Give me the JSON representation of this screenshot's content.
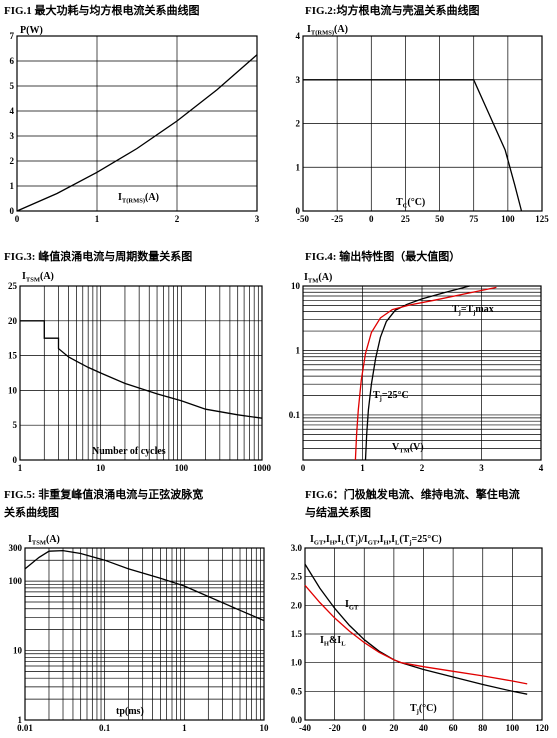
{
  "chart_data": [
    {
      "id": "fig1",
      "type": "line",
      "caption": "FIG.1  最大功耗与均方根电流关系曲线图",
      "ylabel": "P(W)",
      "xlabel": "IT(RMS)(A)",
      "xlabel_parts": [
        "I",
        "T(RMS)",
        "(A)"
      ],
      "xlim": [
        0,
        3
      ],
      "ylim": [
        0,
        7
      ],
      "xticks": [
        0,
        1,
        2,
        3
      ],
      "yticks": [
        0,
        1,
        2,
        3,
        4,
        5,
        6,
        7
      ],
      "grid": true,
      "series": [
        {
          "color": "#000000",
          "x": [
            0,
            0.5,
            1.0,
            1.5,
            2.0,
            2.5,
            3.0
          ],
          "y": [
            0,
            0.7,
            1.55,
            2.5,
            3.6,
            4.85,
            6.25
          ]
        }
      ]
    },
    {
      "id": "fig2",
      "type": "line",
      "caption": "FIG.2:均方根电流与壳温关系曲线图",
      "ylabel": "IT(RMS)(A)",
      "ylabel_parts": [
        "I",
        "T(RMS)",
        "(A)"
      ],
      "xlabel": "TC(°C)",
      "xlabel_parts": [
        "T",
        "C",
        "(°C)"
      ],
      "xlim": [
        -50,
        125
      ],
      "ylim": [
        0,
        4
      ],
      "xticks": [
        -50,
        -25,
        0,
        25,
        50,
        75,
        100,
        125
      ],
      "yticks": [
        0,
        1,
        2,
        3,
        4
      ],
      "grid": true,
      "series": [
        {
          "color": "#000000",
          "x": [
            -50,
            75,
            85,
            98,
            105,
            110
          ],
          "y": [
            3,
            3,
            2.3,
            1.4,
            0.6,
            0
          ]
        }
      ]
    },
    {
      "id": "fig3",
      "type": "line",
      "caption": "FIG.3:  峰值浪涌电流与周期数量关系图",
      "ylabel": "ITSM(A)",
      "ylabel_parts": [
        "I",
        "TSM",
        "(A)"
      ],
      "xlabel": "Number of cycles",
      "xscale": "log",
      "xlim": [
        1,
        1000
      ],
      "ylim": [
        0,
        25
      ],
      "xticks": [
        1,
        10,
        100,
        1000
      ],
      "yticks": [
        0,
        5,
        10,
        15,
        20,
        25
      ],
      "grid": true,
      "series": [
        {
          "color": "#000000",
          "x": [
            1,
            2,
            2,
            3,
            3,
            4,
            5,
            7,
            10,
            20,
            50,
            100,
            200,
            500,
            1000
          ],
          "y": [
            20,
            20,
            17.5,
            17.5,
            16,
            14.8,
            14.2,
            13.3,
            12.5,
            11,
            9.5,
            8.5,
            7.3,
            6.5,
            6
          ]
        }
      ]
    },
    {
      "id": "fig4",
      "type": "line",
      "caption": "FIG.4:  输出特性图（最大值图）",
      "ylabel": "ITM(A)",
      "ylabel_parts": [
        "I",
        "TM",
        "(A)"
      ],
      "xlabel": "VTM(V)",
      "xlabel_parts": [
        "V",
        "TM",
        "(V)"
      ],
      "yscale": "log",
      "xlim": [
        0,
        4
      ],
      "ylim": [
        0.02,
        10
      ],
      "xticks": [
        0,
        1,
        2,
        3,
        4
      ],
      "yticks": [
        0.1,
        1,
        10
      ],
      "grid": true,
      "annotations": [
        {
          "text": "Tj=Tjmax",
          "parts": [
            "T",
            "j",
            "=T",
            "j",
            "max"
          ]
        },
        {
          "text": "Tj=25°C",
          "parts": [
            "T",
            "j",
            "=25°C"
          ]
        }
      ],
      "series": [
        {
          "name": "Tj=25°C",
          "color": "#000000",
          "x": [
            1.05,
            1.07,
            1.1,
            1.15,
            1.22,
            1.3,
            1.4,
            1.55,
            1.75,
            2.0,
            2.4,
            2.8
          ],
          "y": [
            0.02,
            0.05,
            0.12,
            0.3,
            0.75,
            1.6,
            2.8,
            4.2,
            5.2,
            6.3,
            8.0,
            10
          ]
        },
        {
          "name": "Tj=Tjmax",
          "color": "#e00000",
          "x": [
            0.88,
            0.9,
            0.93,
            0.98,
            1.05,
            1.15,
            1.3,
            1.5,
            1.8,
            2.2,
            2.7,
            3.25
          ],
          "y": [
            0.02,
            0.05,
            0.12,
            0.35,
            0.9,
            1.9,
            3.2,
            4.3,
            5.1,
            6.0,
            7.5,
            9.5
          ]
        }
      ]
    },
    {
      "id": "fig5",
      "type": "line",
      "caption_lines": [
        "FIG.5:  非重复峰值浪涌电流与正弦波脉宽",
        "关系曲线图"
      ],
      "caption": "FIG.5:  非重复峰值浪涌电流与正弦波脉宽关系曲线图",
      "ylabel": "ITSM(A)",
      "ylabel_parts": [
        "I",
        "TSM",
        "(A)"
      ],
      "xlabel": "tp(ms)",
      "xscale": "log",
      "yscale": "log",
      "xlim": [
        0.01,
        10
      ],
      "ylim": [
        1,
        300
      ],
      "xticks": [
        0.01,
        0.1,
        1,
        10
      ],
      "xtick_labels": [
        "0.01",
        "0.1",
        "1",
        "10"
      ],
      "yticks": [
        1,
        10,
        100,
        300
      ],
      "grid": true,
      "series": [
        {
          "color": "#000000",
          "x": [
            0.01,
            0.015,
            0.02,
            0.03,
            0.05,
            0.1,
            0.2,
            0.5,
            1,
            2,
            5,
            10
          ],
          "y": [
            150,
            220,
            270,
            275,
            250,
            200,
            150,
            110,
            85,
            60,
            38,
            27
          ]
        }
      ]
    },
    {
      "id": "fig6",
      "type": "line",
      "caption_lines": [
        "FIG.6：门极触发电流、维持电流、擎住电流",
        "与结温关系图"
      ],
      "caption": "FIG.6：门极触发电流、维持电流、擎住电流与结温关系图",
      "ylabel": "IGT,IH,IL(Tj)/IGT,IH,IL(Tj=25°C)",
      "ylabel_parts": [
        "I",
        "GT",
        ",I",
        "H",
        ",I",
        "L",
        "(T",
        "j",
        ")/I",
        "GT",
        ",I",
        "H",
        ",I",
        "L",
        "(T",
        "j",
        "=25°C)"
      ],
      "xlabel": "Tj(°C)",
      "xlabel_parts": [
        "T",
        "j",
        "(°C)"
      ],
      "xlim": [
        -40,
        120
      ],
      "ylim": [
        0,
        3
      ],
      "xticks": [
        -40,
        -20,
        0,
        20,
        40,
        60,
        80,
        100,
        120
      ],
      "yticks": [
        0.0,
        0.5,
        1.0,
        1.5,
        2.0,
        2.5,
        3.0
      ],
      "ytick_labels": [
        "0.0",
        "0.5",
        "1.0",
        "1.5",
        "2.0",
        "2.5",
        "3.0"
      ],
      "grid": true,
      "annotations": [
        {
          "text": "IGT",
          "parts": [
            "I",
            "GT"
          ]
        },
        {
          "text": "IH&IL",
          "parts": [
            "I",
            "H",
            "&I",
            "L"
          ]
        }
      ],
      "series": [
        {
          "name": "IGT",
          "color": "#000000",
          "x": [
            -40,
            -30,
            -20,
            -10,
            0,
            10,
            20,
            25,
            40,
            60,
            80,
            100,
            110
          ],
          "y": [
            2.72,
            2.3,
            1.95,
            1.65,
            1.4,
            1.2,
            1.05,
            1.0,
            0.88,
            0.75,
            0.62,
            0.5,
            0.45
          ]
        },
        {
          "name": "IH&IL",
          "color": "#e00000",
          "x": [
            -40,
            -30,
            -20,
            -10,
            0,
            10,
            20,
            25,
            40,
            60,
            80,
            100,
            110
          ],
          "y": [
            2.35,
            2.05,
            1.78,
            1.55,
            1.35,
            1.18,
            1.05,
            1.0,
            0.93,
            0.85,
            0.77,
            0.68,
            0.63
          ]
        }
      ]
    }
  ]
}
